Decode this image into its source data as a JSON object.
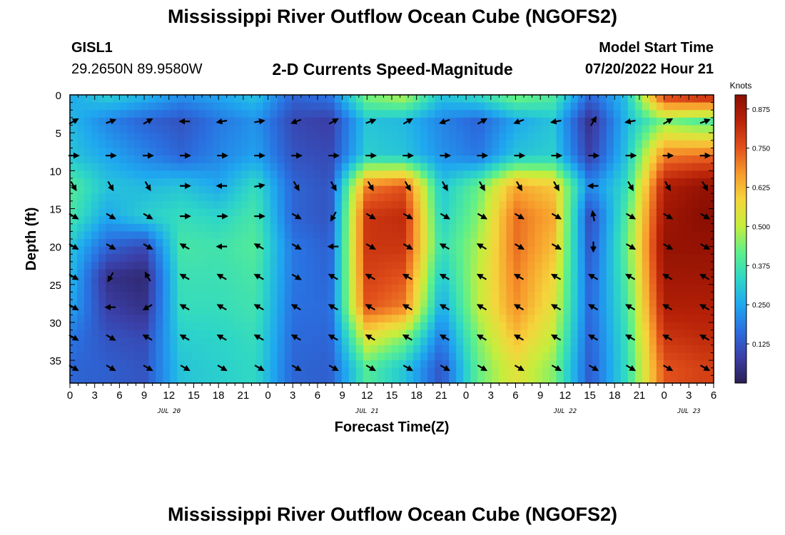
{
  "page": {
    "title": "Mississippi River Outflow Ocean Cube (NGOFS2)",
    "title_repeat": "Mississippi River Outflow Ocean Cube (NGOFS2)",
    "station": "GISL1",
    "coordinates": "29.2650N  89.9580W",
    "subtitle": "2-D Currents Speed-Magnitude",
    "model_start_label": "Model Start Time",
    "model_start_value": "07/20/2022 Hour 21"
  },
  "chart_data": {
    "type": "heatmap",
    "title": "2-D Currents Speed-Magnitude",
    "xlabel": "Forecast Time(Z)",
    "ylabel": "Depth (ft)",
    "x_tick_labels": [
      "0",
      "3",
      "6",
      "9",
      "12",
      "15",
      "18",
      "21",
      "0",
      "3",
      "6",
      "9",
      "12",
      "15",
      "18",
      "21",
      "0",
      "3",
      "6",
      "9",
      "12",
      "15",
      "18",
      "21",
      "0",
      "3",
      "6"
    ],
    "x_tick_hours": [
      0,
      3,
      6,
      9,
      12,
      15,
      18,
      21,
      24,
      27,
      30,
      33,
      36,
      39,
      42,
      45,
      48,
      51,
      54,
      57,
      60,
      63,
      66,
      69,
      72,
      75,
      78
    ],
    "x_range_hours": [
      0,
      78
    ],
    "date_labels": [
      {
        "text": "JUL 20",
        "hour": 12
      },
      {
        "text": "JUL 21",
        "hour": 36
      },
      {
        "text": "JUL 22",
        "hour": 60
      },
      {
        "text": "JUL 23",
        "hour": 75
      }
    ],
    "y_ticks": [
      0,
      5,
      10,
      15,
      20,
      25,
      30,
      35
    ],
    "y_range_ft": [
      0,
      38
    ],
    "y_inverted": true,
    "colorbar": {
      "label": "Knots",
      "ticks": [
        0.125,
        0.25,
        0.375,
        0.5,
        0.625,
        0.75,
        0.875
      ],
      "tick_labels": [
        "0.125",
        "0.250",
        "0.375",
        "0.500",
        "0.625",
        "0.750",
        "0.875"
      ],
      "range": [
        0,
        0.92
      ],
      "colors": [
        "#2a1e55",
        "#3b3fa8",
        "#2a6fe0",
        "#1fa8f0",
        "#2ed7c6",
        "#5ef08a",
        "#c5ee3c",
        "#f5d53c",
        "#f79a2c",
        "#e1501b",
        "#b82208",
        "#8a0e02"
      ]
    },
    "depth_levels_ft": [
      0,
      3.5,
      8,
      12,
      16,
      20,
      24,
      28,
      32,
      36
    ],
    "time_columns_hours": [
      0,
      4.5,
      9,
      13.5,
      18,
      22.5,
      27,
      31.5,
      36,
      40.5,
      45,
      49.5,
      54,
      58.5,
      63,
      67.5,
      72,
      76.5
    ],
    "speed_knots_grid": [
      [
        0.25,
        0.32,
        0.28,
        0.22,
        0.25,
        0.3,
        0.15,
        0.18,
        0.45,
        0.5,
        0.3,
        0.35,
        0.45,
        0.4,
        0.15,
        0.3,
        0.8,
        0.85
      ],
      [
        0.28,
        0.2,
        0.15,
        0.12,
        0.18,
        0.22,
        0.1,
        0.08,
        0.3,
        0.28,
        0.2,
        0.15,
        0.25,
        0.3,
        0.05,
        0.28,
        0.45,
        0.4
      ],
      [
        0.3,
        0.25,
        0.2,
        0.15,
        0.2,
        0.24,
        0.12,
        0.1,
        0.32,
        0.3,
        0.22,
        0.18,
        0.3,
        0.32,
        0.08,
        0.3,
        0.7,
        0.72
      ],
      [
        0.4,
        0.3,
        0.28,
        0.3,
        0.25,
        0.35,
        0.15,
        0.12,
        0.7,
        0.75,
        0.3,
        0.42,
        0.65,
        0.6,
        0.2,
        0.35,
        0.85,
        0.9
      ],
      [
        0.38,
        0.25,
        0.32,
        0.35,
        0.33,
        0.38,
        0.15,
        0.12,
        0.8,
        0.82,
        0.32,
        0.45,
        0.72,
        0.65,
        0.1,
        0.4,
        0.88,
        0.92
      ],
      [
        0.3,
        0.15,
        0.1,
        0.38,
        0.37,
        0.4,
        0.18,
        0.14,
        0.8,
        0.8,
        0.35,
        0.48,
        0.72,
        0.62,
        0.12,
        0.42,
        0.9,
        0.9
      ],
      [
        0.28,
        0.05,
        0.03,
        0.36,
        0.36,
        0.38,
        0.18,
        0.15,
        0.78,
        0.75,
        0.3,
        0.5,
        0.7,
        0.58,
        0.14,
        0.4,
        0.88,
        0.88
      ],
      [
        0.25,
        0.08,
        0.05,
        0.35,
        0.35,
        0.37,
        0.17,
        0.16,
        0.75,
        0.7,
        0.25,
        0.5,
        0.68,
        0.55,
        0.15,
        0.38,
        0.85,
        0.85
      ],
      [
        0.18,
        0.12,
        0.1,
        0.32,
        0.33,
        0.35,
        0.16,
        0.15,
        0.55,
        0.45,
        0.18,
        0.45,
        0.62,
        0.5,
        0.14,
        0.36,
        0.8,
        0.82
      ],
      [
        0.15,
        0.14,
        0.12,
        0.3,
        0.32,
        0.34,
        0.15,
        0.14,
        0.4,
        0.3,
        0.12,
        0.42,
        0.55,
        0.45,
        0.13,
        0.35,
        0.75,
        0.78
      ]
    ],
    "direction_deg_grid": [
      [
        null,
        null,
        null,
        null,
        null,
        null,
        null,
        null,
        null,
        null,
        null,
        null,
        null,
        null,
        null,
        null,
        null,
        null
      ],
      [
        30,
        20,
        30,
        180,
        190,
        10,
        200,
        30,
        20,
        30,
        200,
        30,
        200,
        190,
        60,
        190,
        30,
        20
      ],
      [
        0,
        0,
        0,
        0,
        0,
        0,
        0,
        0,
        0,
        0,
        0,
        0,
        0,
        0,
        0,
        0,
        0,
        0
      ],
      [
        300,
        300,
        300,
        0,
        180,
        10,
        300,
        300,
        300,
        300,
        300,
        300,
        300,
        300,
        180,
        300,
        300,
        300
      ],
      [
        330,
        330,
        330,
        0,
        0,
        0,
        330,
        240,
        330,
        330,
        330,
        330,
        330,
        330,
        100,
        330,
        330,
        330
      ],
      [
        330,
        330,
        330,
        150,
        180,
        150,
        330,
        180,
        330,
        330,
        150,
        150,
        330,
        330,
        270,
        330,
        330,
        330
      ],
      [
        330,
        240,
        120,
        150,
        150,
        150,
        330,
        150,
        150,
        150,
        150,
        150,
        150,
        150,
        150,
        150,
        150,
        150
      ],
      [
        330,
        180,
        210,
        150,
        150,
        150,
        150,
        150,
        150,
        150,
        150,
        150,
        150,
        150,
        150,
        150,
        150,
        150
      ],
      [
        330,
        330,
        150,
        150,
        150,
        150,
        150,
        150,
        150,
        150,
        150,
        150,
        150,
        150,
        150,
        150,
        150,
        150
      ],
      [
        330,
        330,
        330,
        330,
        330,
        330,
        330,
        330,
        330,
        330,
        330,
        330,
        330,
        330,
        330,
        330,
        330,
        330
      ]
    ]
  }
}
